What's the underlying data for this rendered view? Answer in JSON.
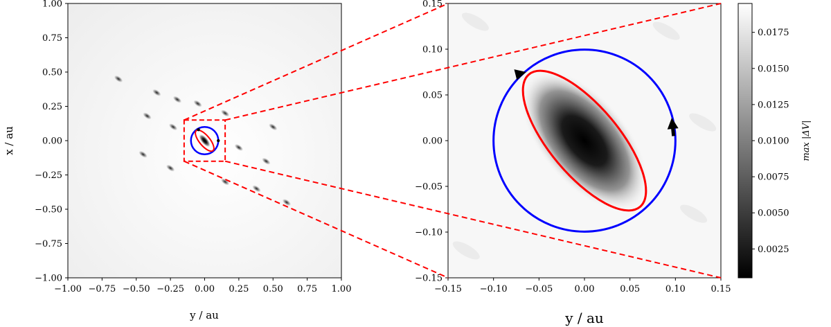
{
  "chart_data": [
    {
      "type": "heatmap",
      "panel": "overview",
      "xlabel": "y / au",
      "ylabel": "x / au",
      "xlim": [
        -1.0,
        1.0
      ],
      "ylim": [
        -1.0,
        1.0
      ],
      "xticks": [
        -1.0,
        -0.75,
        -0.5,
        -0.25,
        0.0,
        0.25,
        0.5,
        0.75,
        1.0
      ],
      "yticks": [
        -1.0,
        -0.75,
        -0.5,
        -0.25,
        0.0,
        0.25,
        0.5,
        0.75,
        1.0
      ],
      "xtick_labels": [
        "−1.00",
        "−0.75",
        "−0.50",
        "−0.25",
        "0.00",
        "0.25",
        "0.50",
        "0.75",
        "1.00"
      ],
      "ytick_labels": [
        "−1.00",
        "−0.75",
        "−0.50",
        "−0.25",
        "0.00",
        "0.25",
        "0.50",
        "0.75",
        "1.00"
      ],
      "dark_spots": [
        {
          "x": -0.63,
          "y": 0.45
        },
        {
          "x": -0.35,
          "y": 0.35
        },
        {
          "x": -0.2,
          "y": 0.3
        },
        {
          "x": -0.05,
          "y": 0.27
        },
        {
          "x": -0.42,
          "y": 0.18
        },
        {
          "x": -0.23,
          "y": 0.1
        },
        {
          "x": -0.45,
          "y": -0.1
        },
        {
          "x": -0.25,
          "y": -0.2
        },
        {
          "x": 0.15,
          "y": 0.2
        },
        {
          "x": 0.25,
          "y": -0.05
        },
        {
          "x": 0.45,
          "y": -0.15
        },
        {
          "x": 0.38,
          "y": -0.35
        },
        {
          "x": 0.15,
          "y": -0.3
        },
        {
          "x": 0.6,
          "y": -0.45
        },
        {
          "x": 0.5,
          "y": 0.1
        }
      ],
      "zoom_box": {
        "x0": -0.15,
        "x1": 0.15,
        "y0": -0.15,
        "y1": 0.15
      }
    },
    {
      "type": "heatmap",
      "panel": "zoom",
      "xlabel": "y / au",
      "xlim": [
        -0.15,
        0.15
      ],
      "ylim": [
        -0.15,
        0.15
      ],
      "xticks": [
        -0.15,
        -0.1,
        -0.05,
        0.0,
        0.05,
        0.1,
        0.15
      ],
      "yticks": [
        -0.15,
        -0.1,
        -0.05,
        0.0,
        0.05,
        0.1,
        0.15
      ],
      "xtick_labels": [
        "−0.15",
        "−0.10",
        "−0.05",
        "0.00",
        "0.05",
        "0.10",
        "0.15"
      ],
      "ytick_labels": [
        "−0.15",
        "−0.10",
        "−0.05",
        "0.00",
        "0.05",
        "0.10",
        "0.15"
      ],
      "blob": {
        "cx": 0.0,
        "cy": 0.0,
        "semi_major": 0.06,
        "semi_minor": 0.025,
        "angle_deg": 50
      },
      "circle": {
        "cx": 0.0,
        "cy": 0.0,
        "r": 0.1,
        "color": "#0000ff"
      },
      "ellipse": {
        "cx": 0.0,
        "cy": 0.0,
        "semi_major": 0.095,
        "semi_minor": 0.038,
        "angle_deg": 50,
        "color": "#ff0000"
      },
      "arrows": [
        {
          "x": 0.098,
          "y": 0.005,
          "dx": -0.002,
          "dy": 0.02
        },
        {
          "x": -0.068,
          "y": 0.074,
          "dx": 0.004,
          "dy": 0.001
        }
      ]
    }
  ],
  "colorbar": {
    "label": "max |ΔV|",
    "range": [
      0.0005,
      0.0195
    ],
    "ticks": [
      0.0025,
      0.005,
      0.0075,
      0.01,
      0.0125,
      0.015,
      0.0175
    ],
    "tick_labels": [
      "0.0025",
      "0.0050",
      "0.0075",
      "0.0100",
      "0.0125",
      "0.0150",
      "0.0175"
    ],
    "colormap": "gray"
  },
  "colors": {
    "zoom_lines": "#ff0000",
    "circle": "#0000ff",
    "ellipse": "#ff0000"
  }
}
